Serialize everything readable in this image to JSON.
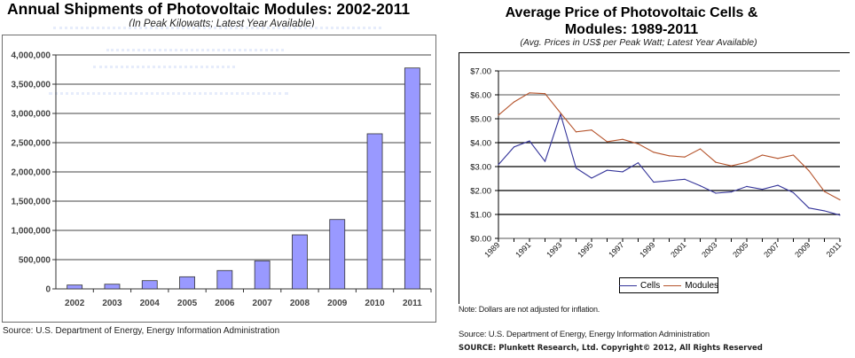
{
  "chart_data": [
    {
      "type": "bar",
      "title": "Annual Shipments of Photovoltaic Modules: 2002-2011",
      "subtitle": "(In Peak Kilowatts; Latest Year Available)",
      "xlabel": "",
      "ylabel": "",
      "categories": [
        "2002",
        "2003",
        "2004",
        "2005",
        "2006",
        "2007",
        "2008",
        "2009",
        "2010",
        "2011"
      ],
      "values": [
        66000,
        80000,
        141000,
        207000,
        314000,
        480000,
        924000,
        1186000,
        2652000,
        3777000
      ],
      "ylim": [
        0,
        4000000
      ],
      "yticks": [
        0,
        500000,
        1000000,
        1500000,
        2000000,
        2500000,
        3000000,
        3500000,
        4000000
      ],
      "ytick_labels": [
        "0",
        "500,000",
        "1,000,000",
        "1,500,000",
        "2,000,000",
        "2,500,000",
        "3,000,000",
        "3,500,000",
        "4,000,000"
      ],
      "grid": true,
      "bar_color": "#9999ff",
      "source": "Source: U.S. Department of Energy, Energy Information Administration"
    },
    {
      "type": "line",
      "title_line1": "Average Price of Photovoltaic Cells &",
      "title_line2": "Modules: 1989-2011",
      "subtitle": "(Avg. Prices in US$ per Peak Watt; Latest Year Available)",
      "xlabel": "",
      "ylabel": "",
      "x": [
        1989,
        1990,
        1991,
        1992,
        1993,
        1994,
        1995,
        1996,
        1997,
        1998,
        1999,
        2000,
        2001,
        2002,
        2003,
        2004,
        2005,
        2006,
        2007,
        2008,
        2009,
        2010,
        2011
      ],
      "xtick_labels": [
        "1989",
        "1991",
        "1993",
        "1995",
        "1997",
        "1999",
        "2001",
        "2003",
        "2005",
        "2007",
        "2009",
        "2011"
      ],
      "series": [
        {
          "name": "Cells",
          "color": "#333399",
          "values": [
            3.08,
            3.82,
            4.07,
            3.22,
            5.19,
            2.94,
            2.52,
            2.85,
            2.78,
            3.16,
            2.35,
            2.41,
            2.47,
            2.2,
            1.89,
            1.94,
            2.17,
            2.05,
            2.22,
            1.91,
            1.27,
            1.15,
            0.97
          ]
        },
        {
          "name": "Modules",
          "color": "#b5532b",
          "values": [
            5.15,
            5.7,
            6.08,
            6.05,
            5.24,
            4.45,
            4.53,
            4.04,
            4.14,
            3.95,
            3.6,
            3.45,
            3.4,
            3.74,
            3.18,
            3.03,
            3.18,
            3.48,
            3.34,
            3.48,
            2.83,
            1.96,
            1.61
          ]
        }
      ],
      "ylim": [
        0,
        7
      ],
      "yticks": [
        0,
        1,
        2,
        3,
        4,
        5,
        6,
        7
      ],
      "ytick_labels": [
        "$0.00",
        "$1.00",
        "$2.00",
        "$3.00",
        "$4.00",
        "$5.00",
        "$6.00",
        "$7.00"
      ],
      "grid": true,
      "legend": "bottom-center",
      "note": "Note: Dollars are not adjusted for inflation.",
      "source": "Source: U.S. Department of Energy, Energy Information Administration",
      "copyright": "SOURCE: Plunkett Research, Ltd. Copyright© 2012, All Rights Reserved"
    }
  ]
}
